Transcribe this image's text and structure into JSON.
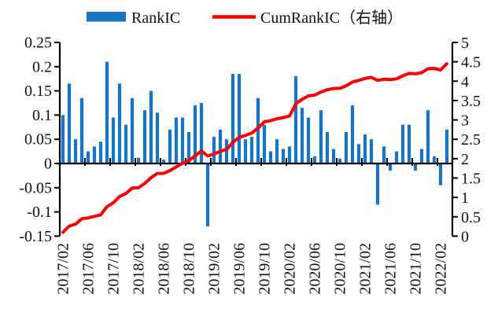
{
  "legend": {
    "bar_label": "RankIC",
    "line_label": "CumRankIC（右轴）"
  },
  "colors": {
    "bar": "#1874C4",
    "line": "#FB0000",
    "axis": "#000000",
    "text": "#111111",
    "background": "#FFFFFF"
  },
  "chart_data": {
    "type": "bar",
    "subtype": "bar-line-combo",
    "title": "",
    "grid": false,
    "legend_position": "top",
    "categories": [
      "2017/02",
      "2017/03",
      "2017/04",
      "2017/05",
      "2017/06",
      "2017/07",
      "2017/08",
      "2017/09",
      "2017/10",
      "2017/11",
      "2017/12",
      "2018/01",
      "2018/02",
      "2018/03",
      "2018/04",
      "2018/05",
      "2018/06",
      "2018/07",
      "2018/08",
      "2018/09",
      "2018/10",
      "2018/11",
      "2018/12",
      "2019/01",
      "2019/02",
      "2019/03",
      "2019/04",
      "2019/05",
      "2019/06",
      "2019/07",
      "2019/08",
      "2019/09",
      "2019/10",
      "2019/11",
      "2019/12",
      "2020/01",
      "2020/02",
      "2020/03",
      "2020/04",
      "2020/05",
      "2020/06",
      "2020/07",
      "2020/08",
      "2020/09",
      "2020/10",
      "2020/11",
      "2020/12",
      "2021/01",
      "2021/02",
      "2021/03",
      "2021/04",
      "2021/05",
      "2021/06",
      "2021/07",
      "2021/08",
      "2021/09",
      "2021/10",
      "2021/11",
      "2021/12",
      "2022/01",
      "2022/02",
      "2022/03"
    ],
    "series": [
      {
        "name": "RankIC",
        "type": "bar",
        "axis": "left",
        "values": [
          0.1,
          0.165,
          0.05,
          0.135,
          0.025,
          0.035,
          0.045,
          0.21,
          0.095,
          0.165,
          0.08,
          0.135,
          0.012,
          0.11,
          0.15,
          0.105,
          0.008,
          0.07,
          0.095,
          0.095,
          0.065,
          0.12,
          0.125,
          -0.13,
          0.055,
          0.07,
          0.05,
          0.185,
          0.185,
          0.05,
          0.055,
          0.135,
          0.08,
          0.025,
          0.05,
          0.03,
          0.035,
          0.18,
          0.115,
          0.095,
          0.015,
          0.11,
          0.065,
          0.03,
          0.01,
          0.065,
          0.12,
          0.04,
          0.06,
          0.05,
          -0.085,
          0.035,
          -0.015,
          0.025,
          0.08,
          0.08,
          -0.015,
          0.03,
          0.11,
          0.015,
          -0.045,
          0.07
        ]
      },
      {
        "name": "CumRankIC（右轴）",
        "type": "line",
        "axis": "right",
        "values": [
          0.1,
          0.26,
          0.31,
          0.45,
          0.47,
          0.51,
          0.55,
          0.76,
          0.86,
          1.02,
          1.1,
          1.24,
          1.25,
          1.36,
          1.51,
          1.62,
          1.62,
          1.69,
          1.79,
          1.88,
          1.95,
          2.07,
          2.2,
          2.07,
          2.12,
          2.19,
          2.24,
          2.42,
          2.55,
          2.6,
          2.66,
          2.79,
          2.95,
          2.98,
          3.03,
          3.06,
          3.1,
          3.42,
          3.53,
          3.62,
          3.64,
          3.72,
          3.78,
          3.81,
          3.82,
          3.88,
          3.98,
          4.02,
          4.07,
          4.1,
          4.02,
          4.05,
          4.04,
          4.06,
          4.14,
          4.2,
          4.19,
          4.22,
          4.32,
          4.33,
          4.29,
          4.45
        ]
      }
    ],
    "left_axis": {
      "range": [
        -0.15,
        0.25
      ],
      "tick_step": 0.05,
      "tick_labels": [
        "0.25",
        "0.2",
        "0.15",
        "0.1",
        "0.05",
        "0",
        "-0.05",
        "-0.1",
        "-0.15"
      ]
    },
    "right_axis": {
      "range": [
        0,
        5
      ],
      "tick_step": 0.5,
      "tick_labels": [
        "5",
        "4.5",
        "4",
        "3.5",
        "3",
        "2.5",
        "2",
        "1.5",
        "1",
        "0.5",
        "0"
      ]
    },
    "x_axis": {
      "labels": [
        "2017/02",
        "2017/06",
        "2017/10",
        "2018/02",
        "2018/06",
        "2018/10",
        "2019/02",
        "2019/06",
        "2019/10",
        "2020/02",
        "2020/06",
        "2020/10",
        "2021/02",
        "2021/06",
        "2021/10",
        "2022/02"
      ],
      "label_interval_months": 4,
      "labels_rotated_degrees": 90
    }
  }
}
